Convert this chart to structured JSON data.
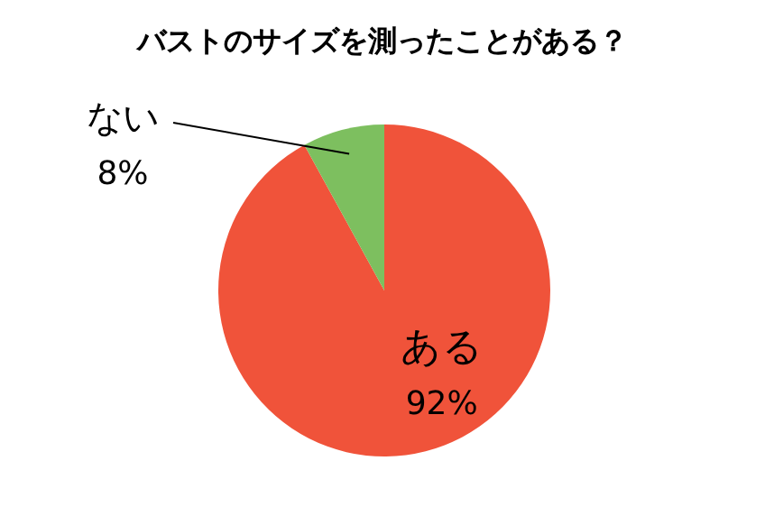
{
  "chart_data": {
    "type": "pie",
    "title": "バストのサイズを測ったことがある？",
    "categories": [
      "ある",
      "ない"
    ],
    "values": [
      92,
      8
    ],
    "colors": [
      "#f0533a",
      "#7dbf5f"
    ],
    "value_labels": [
      "92%",
      "8%"
    ]
  }
}
